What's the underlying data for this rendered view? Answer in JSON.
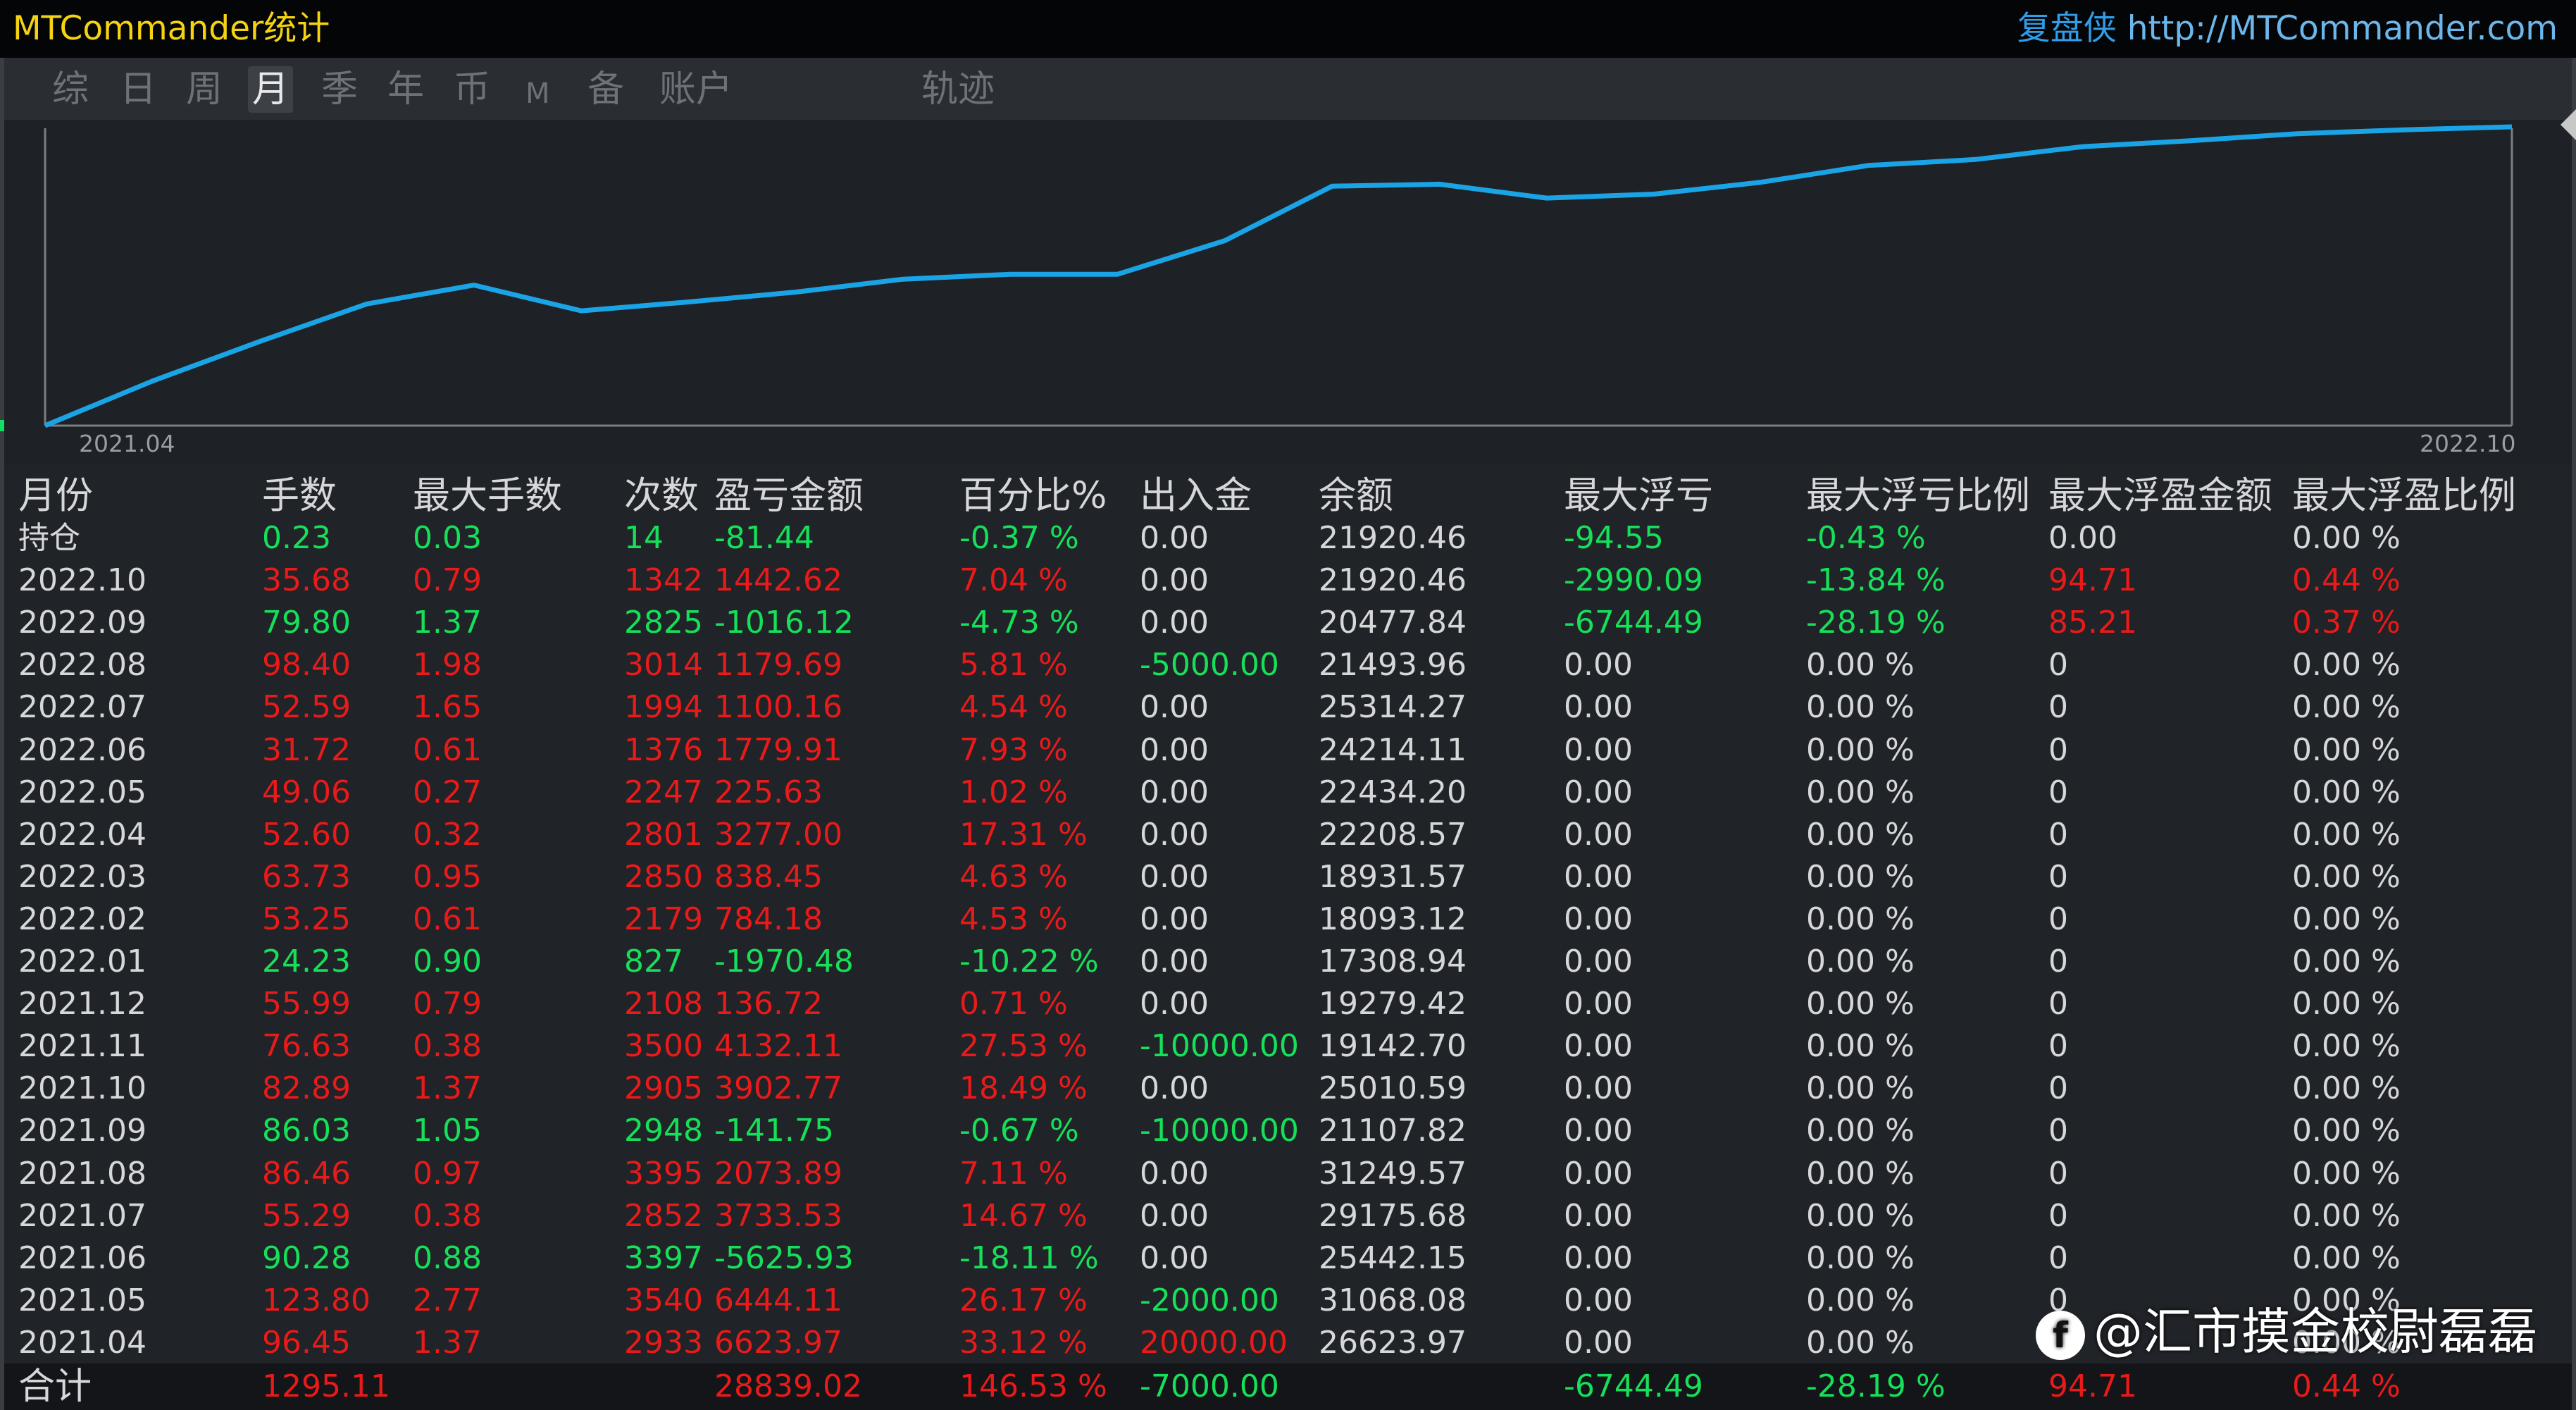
{
  "window": {
    "title": "MTCommander统计",
    "site_brand": "复盘侠",
    "site_url": "http://MTCommander.com"
  },
  "tabs": [
    {
      "label": "综",
      "active": false
    },
    {
      "label": "日",
      "active": false
    },
    {
      "label": "周",
      "active": false
    },
    {
      "label": "月",
      "active": true
    },
    {
      "label": "季",
      "active": false
    },
    {
      "label": "年",
      "active": false
    },
    {
      "label": "币",
      "active": false
    },
    {
      "label": "M",
      "active": false
    },
    {
      "label": "备",
      "active": false
    },
    {
      "label": "账户",
      "active": false
    },
    {
      "label": "轨迹",
      "active": false
    }
  ],
  "chart_data": {
    "type": "line",
    "x_start_label": "2021.04",
    "x_end_label": "2022.10",
    "series": [
      {
        "values": [
          0,
          4.5,
          8.5,
          12.3,
          14.2,
          11.6,
          12.5,
          13.5,
          14.8,
          15.3,
          15.3,
          18.7,
          24.2,
          24.4,
          23.0,
          23.4,
          24.6,
          26.3,
          26.9,
          28.2,
          28.8,
          29.5,
          29.9,
          30.2
        ]
      }
    ],
    "colors": {
      "line": "#1aa4e6",
      "axis": "#7a7e84"
    }
  },
  "table": {
    "headers": [
      "月份",
      "手数",
      "最大手数",
      "次数",
      "盈亏金额",
      "百分比%",
      "出入金",
      "余额",
      "最大浮亏",
      "最大浮亏比例",
      "最大浮盈金额",
      "最大浮盈比例"
    ],
    "rows": [
      [
        "持仓",
        "0.23",
        "0.03",
        "14",
        "-81.44",
        "-0.37 %",
        "0.00",
        "21920.46",
        "-94.55",
        "-0.43 %",
        "0.00",
        "0.00 %"
      ],
      [
        "2022.10",
        "35.68",
        "0.79",
        "1342",
        "1442.62",
        "7.04 %",
        "0.00",
        "21920.46",
        "-2990.09",
        "-13.84 %",
        "94.71",
        "0.44 %"
      ],
      [
        "2022.09",
        "79.80",
        "1.37",
        "2825",
        "-1016.12",
        "-4.73 %",
        "0.00",
        "20477.84",
        "-6744.49",
        "-28.19 %",
        "85.21",
        "0.37 %"
      ],
      [
        "2022.08",
        "98.40",
        "1.98",
        "3014",
        "1179.69",
        "5.81 %",
        "-5000.00",
        "21493.96",
        "0.00",
        "0.00 %",
        "0",
        "0.00 %"
      ],
      [
        "2022.07",
        "52.59",
        "1.65",
        "1994",
        "1100.16",
        "4.54 %",
        "0.00",
        "25314.27",
        "0.00",
        "0.00 %",
        "0",
        "0.00 %"
      ],
      [
        "2022.06",
        "31.72",
        "0.61",
        "1376",
        "1779.91",
        "7.93 %",
        "0.00",
        "24214.11",
        "0.00",
        "0.00 %",
        "0",
        "0.00 %"
      ],
      [
        "2022.05",
        "49.06",
        "0.27",
        "2247",
        "225.63",
        "1.02 %",
        "0.00",
        "22434.20",
        "0.00",
        "0.00 %",
        "0",
        "0.00 %"
      ],
      [
        "2022.04",
        "52.60",
        "0.32",
        "2801",
        "3277.00",
        "17.31 %",
        "0.00",
        "22208.57",
        "0.00",
        "0.00 %",
        "0",
        "0.00 %"
      ],
      [
        "2022.03",
        "63.73",
        "0.95",
        "2850",
        "838.45",
        "4.63 %",
        "0.00",
        "18931.57",
        "0.00",
        "0.00 %",
        "0",
        "0.00 %"
      ],
      [
        "2022.02",
        "53.25",
        "0.61",
        "2179",
        "784.18",
        "4.53 %",
        "0.00",
        "18093.12",
        "0.00",
        "0.00 %",
        "0",
        "0.00 %"
      ],
      [
        "2022.01",
        "24.23",
        "0.90",
        "827",
        "-1970.48",
        "-10.22 %",
        "0.00",
        "17308.94",
        "0.00",
        "0.00 %",
        "0",
        "0.00 %"
      ],
      [
        "2021.12",
        "55.99",
        "0.79",
        "2108",
        "136.72",
        "0.71 %",
        "0.00",
        "19279.42",
        "0.00",
        "0.00 %",
        "0",
        "0.00 %"
      ],
      [
        "2021.11",
        "76.63",
        "0.38",
        "3500",
        "4132.11",
        "27.53 %",
        "-10000.00",
        "19142.70",
        "0.00",
        "0.00 %",
        "0",
        "0.00 %"
      ],
      [
        "2021.10",
        "82.89",
        "1.37",
        "2905",
        "3902.77",
        "18.49 %",
        "0.00",
        "25010.59",
        "0.00",
        "0.00 %",
        "0",
        "0.00 %"
      ],
      [
        "2021.09",
        "86.03",
        "1.05",
        "2948",
        "-141.75",
        "-0.67 %",
        "-10000.00",
        "21107.82",
        "0.00",
        "0.00 %",
        "0",
        "0.00 %"
      ],
      [
        "2021.08",
        "86.46",
        "0.97",
        "3395",
        "2073.89",
        "7.11 %",
        "0.00",
        "31249.57",
        "0.00",
        "0.00 %",
        "0",
        "0.00 %"
      ],
      [
        "2021.07",
        "55.29",
        "0.38",
        "2852",
        "3733.53",
        "14.67 %",
        "0.00",
        "29175.68",
        "0.00",
        "0.00 %",
        "0",
        "0.00 %"
      ],
      [
        "2021.06",
        "90.28",
        "0.88",
        "3397",
        "-5625.93",
        "-18.11 %",
        "0.00",
        "25442.15",
        "0.00",
        "0.00 %",
        "0",
        "0.00 %"
      ],
      [
        "2021.05",
        "123.80",
        "2.77",
        "3540",
        "6444.11",
        "26.17 %",
        "-2000.00",
        "31068.08",
        "0.00",
        "0.00 %",
        "0",
        "0.00 %"
      ],
      [
        "2021.04",
        "96.45",
        "1.37",
        "2933",
        "6623.97",
        "33.12 %",
        "20000.00",
        "26623.97",
        "0.00",
        "0.00 %",
        "0",
        "0.00 %"
      ]
    ],
    "row_colors": [
      [
        "w",
        "g",
        "g",
        "g",
        "g",
        "g",
        "w",
        "w",
        "g",
        "g",
        "w",
        "w"
      ],
      [
        "w",
        "r",
        "r",
        "r",
        "r",
        "r",
        "w",
        "w",
        "g",
        "g",
        "r",
        "r"
      ],
      [
        "w",
        "g",
        "g",
        "g",
        "g",
        "g",
        "w",
        "w",
        "g",
        "g",
        "r",
        "r"
      ],
      [
        "w",
        "r",
        "r",
        "r",
        "r",
        "r",
        "g",
        "w",
        "w",
        "w",
        "w",
        "w"
      ],
      [
        "w",
        "r",
        "r",
        "r",
        "r",
        "r",
        "w",
        "w",
        "w",
        "w",
        "w",
        "w"
      ],
      [
        "w",
        "r",
        "r",
        "r",
        "r",
        "r",
        "w",
        "w",
        "w",
        "w",
        "w",
        "w"
      ],
      [
        "w",
        "r",
        "r",
        "r",
        "r",
        "r",
        "w",
        "w",
        "w",
        "w",
        "w",
        "w"
      ],
      [
        "w",
        "r",
        "r",
        "r",
        "r",
        "r",
        "w",
        "w",
        "w",
        "w",
        "w",
        "w"
      ],
      [
        "w",
        "r",
        "r",
        "r",
        "r",
        "r",
        "w",
        "w",
        "w",
        "w",
        "w",
        "w"
      ],
      [
        "w",
        "r",
        "r",
        "r",
        "r",
        "r",
        "w",
        "w",
        "w",
        "w",
        "w",
        "w"
      ],
      [
        "w",
        "g",
        "g",
        "g",
        "g",
        "g",
        "w",
        "w",
        "w",
        "w",
        "w",
        "w"
      ],
      [
        "w",
        "r",
        "r",
        "r",
        "r",
        "r",
        "w",
        "w",
        "w",
        "w",
        "w",
        "w"
      ],
      [
        "w",
        "r",
        "r",
        "r",
        "r",
        "r",
        "g",
        "w",
        "w",
        "w",
        "w",
        "w"
      ],
      [
        "w",
        "r",
        "r",
        "r",
        "r",
        "r",
        "w",
        "w",
        "w",
        "w",
        "w",
        "w"
      ],
      [
        "w",
        "g",
        "g",
        "g",
        "g",
        "g",
        "g",
        "w",
        "w",
        "w",
        "w",
        "w"
      ],
      [
        "w",
        "r",
        "r",
        "r",
        "r",
        "r",
        "w",
        "w",
        "w",
        "w",
        "w",
        "w"
      ],
      [
        "w",
        "r",
        "r",
        "r",
        "r",
        "r",
        "w",
        "w",
        "w",
        "w",
        "w",
        "w"
      ],
      [
        "w",
        "g",
        "g",
        "g",
        "g",
        "g",
        "w",
        "w",
        "w",
        "w",
        "w",
        "w"
      ],
      [
        "w",
        "r",
        "r",
        "r",
        "r",
        "r",
        "g",
        "w",
        "w",
        "w",
        "w",
        "w"
      ],
      [
        "w",
        "r",
        "r",
        "r",
        "r",
        "r",
        "r",
        "w",
        "w",
        "w",
        "w",
        "w"
      ]
    ],
    "total": {
      "label": "合计",
      "lots": "1295.11",
      "pnl": "28839.02",
      "pct": "146.53 %",
      "flow": "-7000.00",
      "max_float_loss": "-6744.49",
      "max_float_loss_pct": "-28.19 %",
      "max_float_profit": "94.71",
      "max_float_profit_pct": "0.44 %"
    }
  },
  "colors": {
    "red": "#e81a1a",
    "green": "#16e05a",
    "white": "#d6d7d9",
    "title": "#f5d312"
  },
  "watermark": {
    "icon": "facebook-icon",
    "text": "@汇市摸金校尉磊磊"
  }
}
